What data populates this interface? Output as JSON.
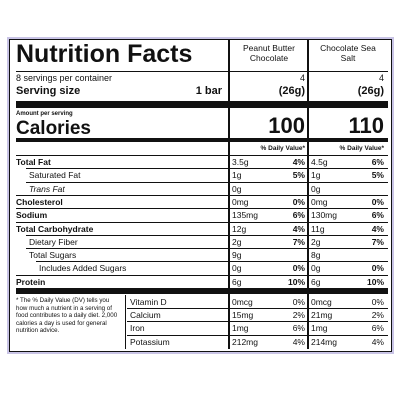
{
  "header": {
    "title": "Nutrition Facts",
    "servings": "8 servings per container",
    "serving_size_label": "Serving size",
    "serving_size": "1 bar",
    "amount_per_serving": "Amount per serving",
    "calories_label": "Calories"
  },
  "columns": [
    {
      "name": "Peanut Butter Chocolate",
      "servings": "4",
      "serving_size": "(26g)",
      "calories": "100",
      "daily_value_header": "% Daily Value*"
    },
    {
      "name": "Chocolate Sea Salt",
      "servings": "4",
      "serving_size": "(26g)",
      "calories": "110",
      "daily_value_header": "% Daily Value*"
    }
  ],
  "nutrients": [
    {
      "label": "Total Fat",
      "values": [
        [
          "3.5g",
          "4%"
        ],
        [
          "4.5g",
          "6%"
        ]
      ]
    },
    {
      "label": "Saturated Fat",
      "values": [
        [
          "1g",
          "5%"
        ],
        [
          "1g",
          "5%"
        ]
      ]
    },
    {
      "label": "Trans Fat",
      "values": [
        [
          "0g"
        ],
        [
          "0g"
        ]
      ]
    },
    {
      "label": "Cholesterol",
      "values": [
        [
          "0mg",
          "0%"
        ],
        [
          "0mg",
          "0%"
        ]
      ]
    },
    {
      "label": "Sodium",
      "values": [
        [
          "135mg",
          "6%"
        ],
        [
          "130mg",
          "6%"
        ]
      ]
    },
    {
      "label": "Total Carbohydrate",
      "values": [
        [
          "12g",
          "4%"
        ],
        [
          "11g",
          "4%"
        ]
      ]
    },
    {
      "label": "Dietary Fiber",
      "values": [
        [
          "2g",
          "7%"
        ],
        [
          "2g",
          "7%"
        ]
      ]
    },
    {
      "label": "Total Sugars",
      "values": [
        [
          "9g"
        ],
        [
          "8g"
        ]
      ]
    },
    {
      "label": "Includes Added Sugars",
      "values": [
        [
          "0g",
          "0%"
        ],
        [
          "0g",
          "0%"
        ]
      ]
    },
    {
      "label": "Protein",
      "values": [
        [
          "6g",
          "10%"
        ],
        [
          "6g",
          "10%"
        ]
      ]
    }
  ],
  "vitamins": [
    {
      "label": "Vitamin D",
      "values": [
        [
          "0mcg",
          "0%"
        ],
        [
          "0mcg",
          "0%"
        ]
      ]
    },
    {
      "label": "Calcium",
      "values": [
        [
          "15mg",
          "2%"
        ],
        [
          "21mg",
          "2%"
        ]
      ]
    },
    {
      "label": "Iron",
      "values": [
        [
          "1mg",
          "6%"
        ],
        [
          "1mg",
          "6%"
        ]
      ]
    },
    {
      "label": "Potassium",
      "values": [
        [
          "212mg",
          "4%"
        ],
        [
          "214mg",
          "4%"
        ]
      ]
    }
  ],
  "footnote": "* The % Daily Value (DV) tells you how much a nutrient in a serving of food contributes to a daily diet. 2,000 calories a day is used for general nutrition advice."
}
